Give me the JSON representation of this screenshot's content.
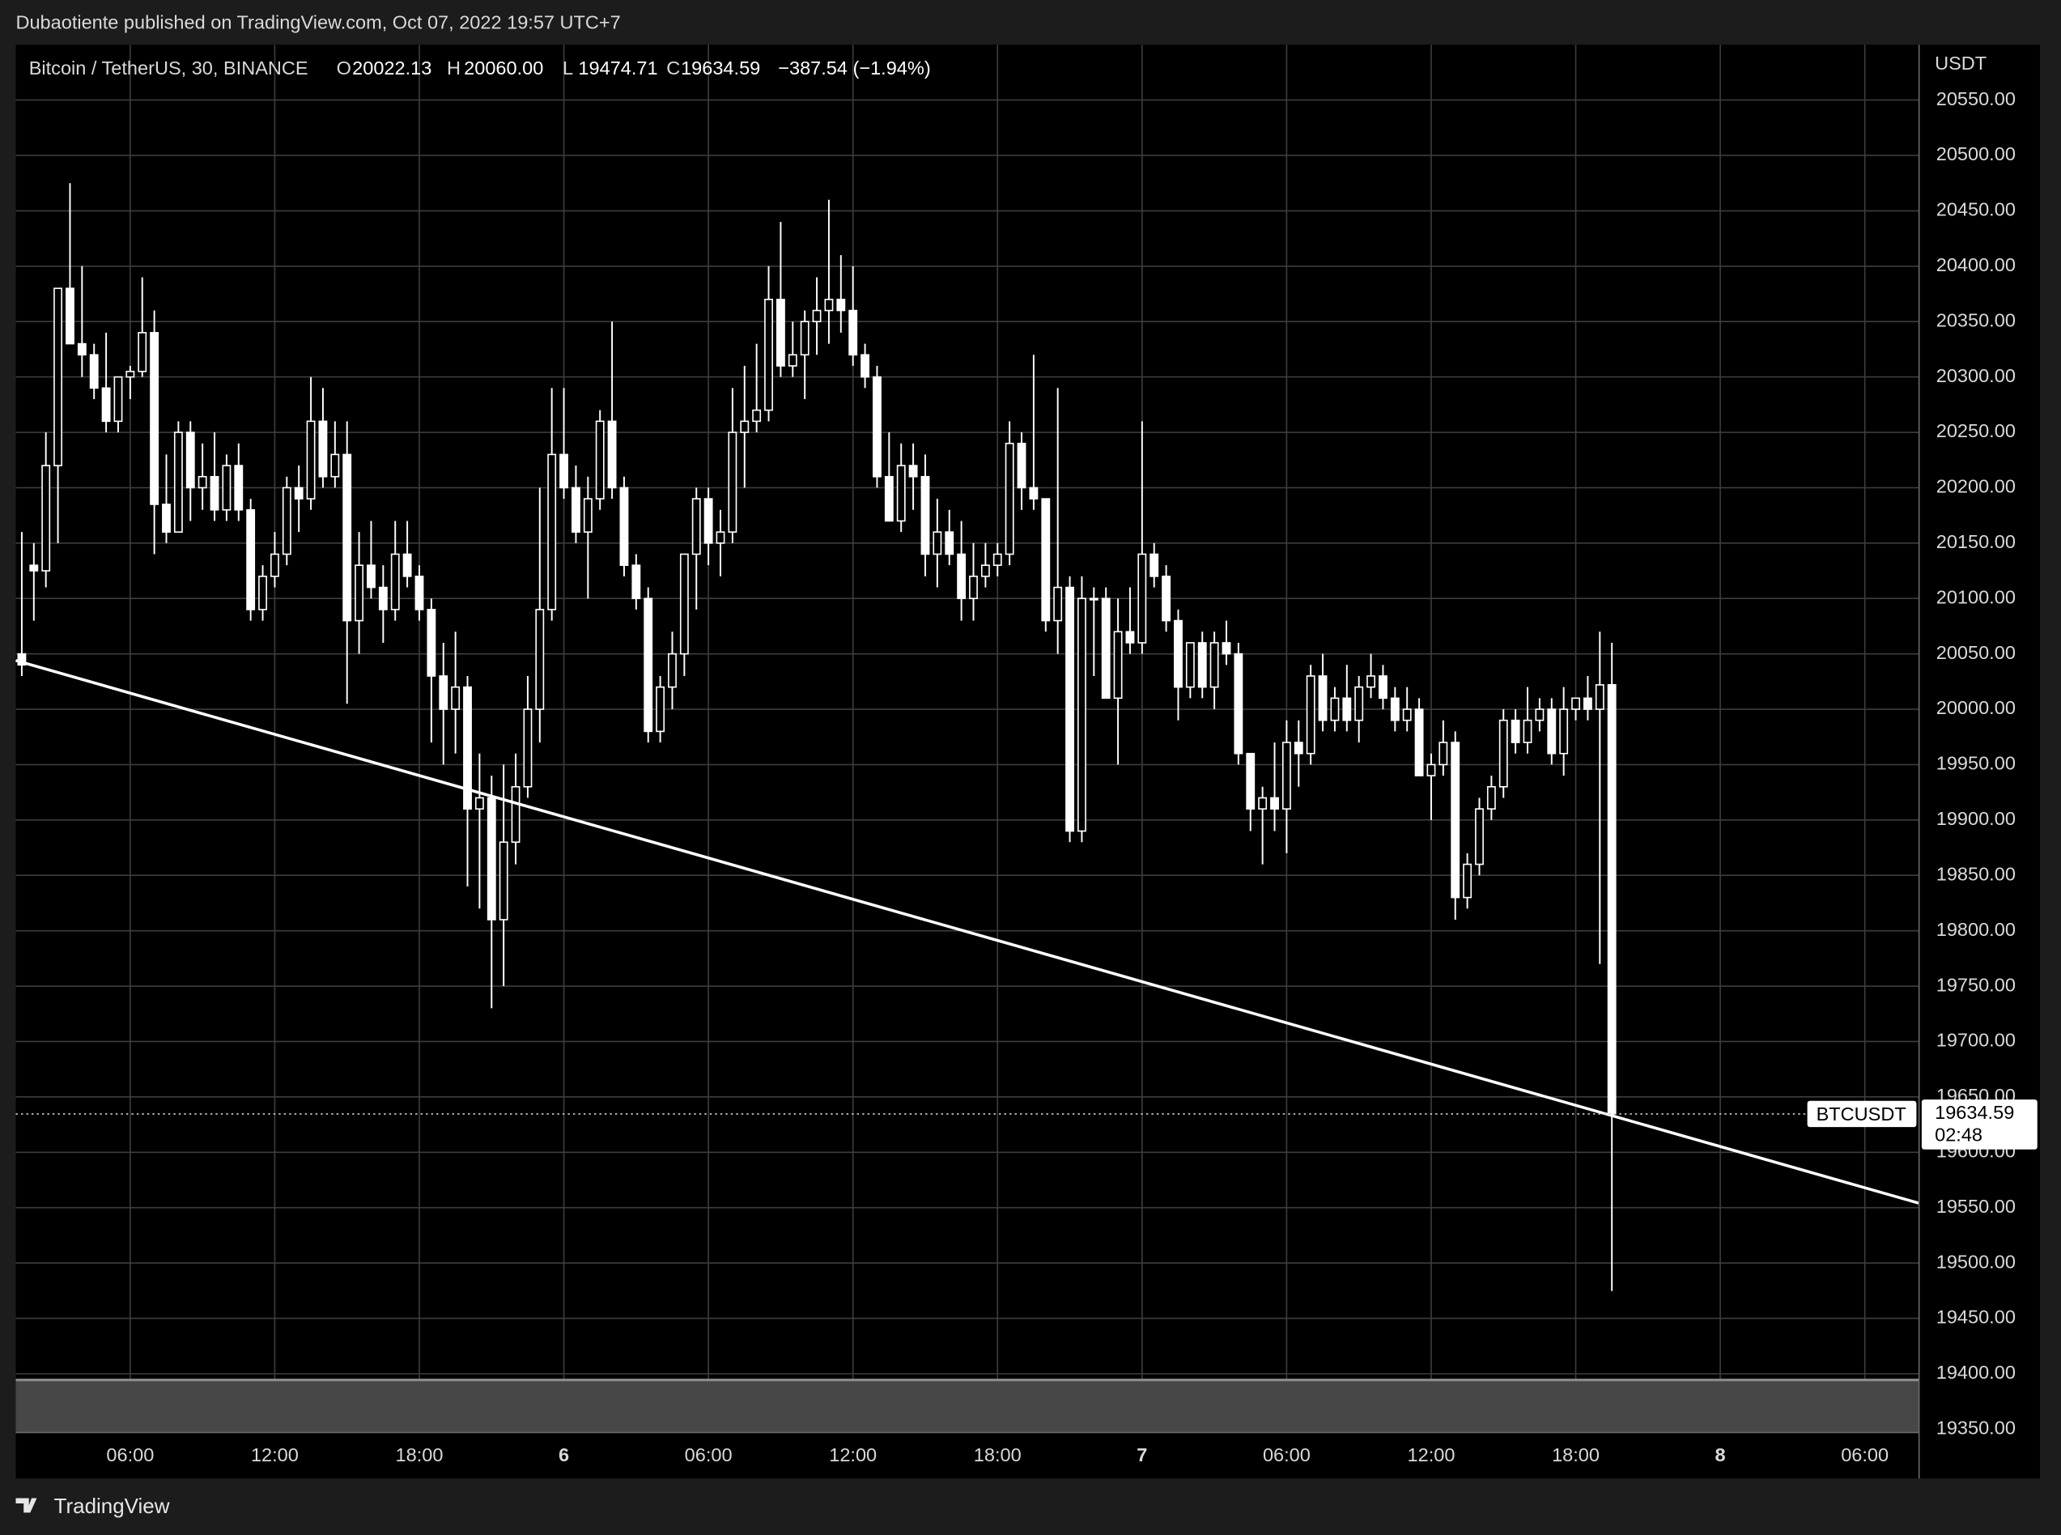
{
  "header": {
    "published": "Dubaotiente published on TradingView.com, Oct 07, 2022 19:57 UTC+7"
  },
  "footer": {
    "brand": "TradingView"
  },
  "chart_data": {
    "type": "candlestick",
    "title": "Bitcoin / TetherUS, 30, BINANCE",
    "ohlc_legend": [
      {
        "key": "O",
        "text": "20022.13"
      },
      {
        "key": "H",
        "text": "20060.00"
      },
      {
        "key": "L",
        "text": "19474.71"
      },
      {
        "key": "C",
        "text": "19634.59"
      }
    ],
    "change": "−387.54 (−1.94%)",
    "y_axis_label": "USDT",
    "price_label": {
      "symbol": "BTCUSDT",
      "text": "19634.59",
      "countdown": "02:48"
    },
    "up_color": "#000000",
    "down_color": "#ffffff",
    "border_color": "#ffffff",
    "wick_color": "#ffffff",
    "grid": true,
    "categories": [
      null,
      null,
      null,
      null,
      null,
      null,
      null,
      null,
      null,
      "06:00",
      null,
      null,
      null,
      null,
      null,
      null,
      null,
      null,
      null,
      null,
      null,
      "12:00",
      null,
      null,
      null,
      null,
      null,
      null,
      null,
      null,
      null,
      null,
      null,
      "18:00",
      null,
      null,
      null,
      null,
      null,
      null,
      null,
      null,
      null,
      null,
      null,
      "6",
      null,
      null,
      null,
      null,
      null,
      null,
      null,
      null,
      null,
      null,
      null,
      "06:00",
      null,
      null,
      null,
      null,
      null,
      null,
      null,
      null,
      null,
      null,
      null,
      "12:00",
      null,
      null,
      null,
      null,
      null,
      null,
      null,
      null,
      null,
      null,
      null,
      "18:00",
      null,
      null,
      null,
      null,
      null,
      null,
      null,
      null,
      null,
      null,
      null,
      "7",
      null,
      null,
      null,
      null,
      null,
      null,
      null,
      null,
      null,
      null,
      null,
      "06:00",
      null,
      null,
      null,
      null,
      null,
      null,
      null,
      null,
      null,
      null,
      null,
      "12:00",
      null,
      null,
      null,
      null,
      null,
      null,
      null,
      null,
      null,
      null,
      null,
      "18:00",
      null,
      null,
      null,
      null,
      null,
      null,
      null,
      null,
      null,
      null,
      null,
      "8",
      null,
      null,
      null,
      null,
      null,
      null,
      null,
      null,
      null,
      null,
      null,
      "06:00",
      null,
      null,
      null,
      null
    ],
    "open": [
      20050,
      20130,
      20125,
      20220,
      20380,
      20330,
      20320,
      20290,
      20260,
      20300,
      20305,
      20340,
      20185,
      20160,
      20250,
      20200,
      20210,
      20180,
      20220,
      20180,
      20090,
      20120,
      20140,
      20200,
      20190,
      20260,
      20210,
      20230,
      20080,
      20130,
      20110,
      20090,
      20140,
      20120,
      20090,
      20030,
      20000,
      20020,
      19910,
      19920,
      19810,
      19880,
      19930,
      20000,
      20090,
      20230,
      20200,
      20160,
      20190,
      20260,
      20200,
      20130,
      20100,
      19980,
      20020,
      20050,
      20140,
      20190,
      20150,
      20160,
      20250,
      20260,
      20270,
      20370,
      20310,
      20320,
      20350,
      20360,
      20370,
      20360,
      20320,
      20300,
      20210,
      20170,
      20220,
      20210,
      20140,
      20160,
      20140,
      20100,
      20120,
      20130,
      20140,
      20240,
      20200,
      20190,
      20080,
      20110,
      19890,
      20100,
      20100,
      20010,
      20070,
      20060,
      20140,
      20120,
      20080,
      20020,
      20060,
      20020,
      20060,
      20050,
      19960,
      19910,
      19920,
      19910,
      19970,
      19960,
      20030,
      19990,
      20010,
      19990,
      20020,
      20030,
      20010,
      19990,
      20000,
      19940,
      19950,
      19970,
      19830,
      19860,
      19910,
      19930,
      19990,
      19970,
      19990,
      20000,
      19960,
      20000,
      20010,
      20000,
      20022.13,
      null,
      null,
      null,
      null,
      null,
      null,
      null,
      null,
      null,
      null,
      null,
      null,
      null,
      null,
      null,
      null,
      null,
      null,
      null,
      null,
      null,
      null,
      null,
      null,
      null
    ],
    "high": [
      20160,
      20150,
      20250,
      20380,
      20475,
      20400,
      20330,
      20340,
      20300,
      20310,
      20390,
      20360,
      20230,
      20260,
      20260,
      20240,
      20250,
      20230,
      20240,
      20190,
      20130,
      20160,
      20210,
      20220,
      20300,
      20290,
      20260,
      20260,
      20160,
      20170,
      20130,
      20170,
      20170,
      20130,
      20100,
      20060,
      20070,
      20030,
      19960,
      19940,
      19950,
      19960,
      20030,
      20200,
      20290,
      20290,
      20220,
      20210,
      20270,
      20350,
      20210,
      20140,
      20110,
      20030,
      20070,
      20140,
      20200,
      20200,
      20180,
      20290,
      20310,
      20330,
      20400,
      20440,
      20350,
      20360,
      20390,
      20460,
      20410,
      20400,
      20330,
      20310,
      20250,
      20240,
      20240,
      20230,
      20190,
      20180,
      20170,
      20150,
      20150,
      20150,
      20260,
      20250,
      20320,
      20190,
      20290,
      20120,
      20120,
      20110,
      20110,
      20100,
      20110,
      20260,
      20150,
      20130,
      20090,
      20060,
      20070,
      20070,
      20080,
      20060,
      19960,
      19930,
      19970,
      19990,
      19990,
      20040,
      20050,
      20020,
      20040,
      20030,
      20050,
      20040,
      20020,
      20020,
      20010,
      19960,
      19990,
      19980,
      19870,
      19920,
      19940,
      20000,
      20000,
      20020,
      20010,
      20010,
      20020,
      20010,
      20030,
      20070,
      20060,
      null,
      null,
      null,
      null,
      null,
      null,
      null,
      null,
      null,
      null,
      null,
      null,
      null,
      null,
      null,
      null,
      null,
      null,
      null,
      null,
      null,
      null,
      null,
      null,
      null
    ],
    "low": [
      20030,
      20080,
      20110,
      20150,
      20330,
      20300,
      20280,
      20250,
      20250,
      20280,
      20300,
      20140,
      20150,
      20160,
      20170,
      20180,
      20170,
      20170,
      20170,
      20080,
      20080,
      20110,
      20130,
      20160,
      20180,
      20200,
      20200,
      20005,
      20050,
      20100,
      20060,
      20080,
      20110,
      20080,
      19970,
      19950,
      19960,
      19840,
      19820,
      19730,
      19750,
      19860,
      19920,
      19970,
      20080,
      20190,
      20150,
      20100,
      20180,
      20190,
      20120,
      20090,
      19970,
      19970,
      20000,
      20030,
      20090,
      20130,
      20120,
      20150,
      20200,
      20250,
      20260,
      20300,
      20300,
      20280,
      20320,
      20330,
      20340,
      20310,
      20290,
      20200,
      20170,
      20160,
      20180,
      20120,
      20110,
      20130,
      20080,
      20080,
      20110,
      20120,
      20130,
      20180,
      20180,
      20070,
      20050,
      19880,
      19880,
      20030,
      20010,
      19950,
      20050,
      20050,
      20110,
      20070,
      19990,
      20010,
      20010,
      20000,
      20040,
      19950,
      19890,
      19860,
      19890,
      19870,
      19930,
      19950,
      19980,
      19980,
      19980,
      19970,
      20010,
      20000,
      19980,
      19980,
      19940,
      19900,
      19940,
      19810,
      19820,
      19850,
      19900,
      19920,
      19960,
      19960,
      19980,
      19950,
      19940,
      19990,
      19990,
      19770,
      19474.71,
      null,
      null,
      null,
      null,
      null,
      null,
      null,
      null,
      null,
      null,
      null,
      null,
      null,
      null,
      null,
      null,
      null,
      null,
      null,
      null,
      null,
      null,
      null,
      null,
      null
    ],
    "close": [
      20040,
      20125,
      20220,
      20380,
      20330,
      20320,
      20290,
      20260,
      20300,
      20305,
      20340,
      20185,
      20160,
      20250,
      20200,
      20210,
      20180,
      20220,
      20180,
      20090,
      20120,
      20140,
      20200,
      20190,
      20260,
      20210,
      20230,
      20080,
      20130,
      20110,
      20090,
      20140,
      20120,
      20090,
      20030,
      20000,
      20020,
      19910,
      19920,
      19810,
      19880,
      19930,
      20000,
      20090,
      20230,
      20200,
      20160,
      20190,
      20260,
      20200,
      20130,
      20100,
      19980,
      20020,
      20050,
      20140,
      20190,
      20150,
      20160,
      20250,
      20260,
      20270,
      20370,
      20310,
      20320,
      20350,
      20360,
      20370,
      20360,
      20320,
      20300,
      20210,
      20170,
      20220,
      20210,
      20140,
      20160,
      20140,
      20100,
      20120,
      20130,
      20140,
      20240,
      20200,
      20190,
      20080,
      20110,
      19890,
      20100,
      20100,
      20010,
      20070,
      20060,
      20140,
      20120,
      20080,
      20020,
      20060,
      20020,
      20060,
      20050,
      19960,
      19910,
      19920,
      19910,
      19970,
      19960,
      20030,
      19990,
      20010,
      19990,
      20020,
      20030,
      20010,
      19990,
      20000,
      19940,
      19950,
      19970,
      19830,
      19860,
      19910,
      19930,
      19990,
      19970,
      19990,
      20000,
      19960,
      20000,
      20010,
      20000,
      20022,
      19634.59,
      null,
      null,
      null,
      null,
      null,
      null,
      null,
      null,
      null,
      null,
      null,
      null,
      null,
      null,
      null,
      null,
      null,
      null,
      null,
      null,
      null,
      null,
      null,
      null,
      null
    ],
    "trendline": {
      "from": 20044,
      "to": 19554
    },
    "ylim": [
      19347,
      20600
    ],
    "yticks": [
      {
        "value": 19350,
        "label": "19350.00"
      },
      {
        "value": 19400,
        "label": "19400.00"
      },
      {
        "value": 19450,
        "label": "19450.00"
      },
      {
        "value": 19500,
        "label": "19500.00"
      },
      {
        "value": 19550,
        "label": "19550.00"
      },
      {
        "value": 19600,
        "label": "19600.00"
      },
      {
        "value": 19650,
        "label": "19650.00"
      },
      {
        "value": 19700,
        "label": "19700.00"
      },
      {
        "value": 19750,
        "label": "19750.00"
      },
      {
        "value": 19800,
        "label": "19800.00"
      },
      {
        "value": 19850,
        "label": "19850.00"
      },
      {
        "value": 19900,
        "label": "19900.00"
      },
      {
        "value": 19950,
        "label": "19950.00"
      },
      {
        "value": 20000,
        "label": "20000.00"
      },
      {
        "value": 20050,
        "label": "20050.00"
      },
      {
        "value": 20100,
        "label": "20100.00"
      },
      {
        "value": 20150,
        "label": "20150.00"
      },
      {
        "value": 20200,
        "label": "20200.00"
      },
      {
        "value": 20250,
        "label": "20250.00"
      },
      {
        "value": 20300,
        "label": "20300.00"
      },
      {
        "value": 20350,
        "label": "20350.00"
      },
      {
        "value": 20400,
        "label": "20400.00"
      },
      {
        "value": 20450,
        "label": "20450.00"
      },
      {
        "value": 20500,
        "label": "20500.00"
      },
      {
        "value": 20550,
        "label": "20550.00"
      }
    ]
  }
}
